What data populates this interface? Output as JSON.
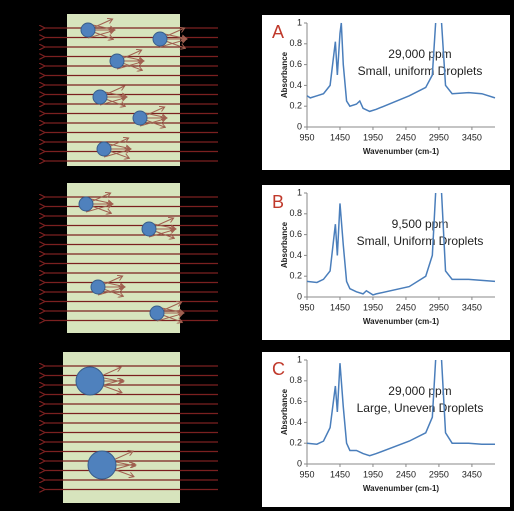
{
  "chart_data": [
    {
      "type": "line",
      "panel_label": "A",
      "annotations": [
        "29,000 ppm",
        "Small, uniform Droplets"
      ],
      "x_label": "Wavenumber (cm-1)",
      "y_label": "Absorbance",
      "color": "#4a7ebb",
      "x": [
        950,
        1000,
        1100,
        1200,
        1300,
        1380,
        1410,
        1450,
        1470,
        1500,
        1550,
        1600,
        1700,
        1750,
        1800,
        1900,
        2000,
        2500,
        2750,
        2850,
        2900,
        2950,
        2990,
        3050,
        3150,
        3400,
        3600,
        3800
      ],
      "values": [
        0.3,
        0.28,
        0.3,
        0.32,
        0.4,
        0.82,
        0.5,
        0.9,
        1,
        0.6,
        0.25,
        0.2,
        0.22,
        0.25,
        0.18,
        0.15,
        0.17,
        0.3,
        0.38,
        0.5,
        1,
        null,
        1,
        0.4,
        0.32,
        0.33,
        0.32,
        0.28
      ],
      "xlim": [
        950,
        3800
      ],
      "ylim": [
        0,
        1
      ],
      "xticks": [
        950,
        1450,
        1950,
        2450,
        2950,
        3450
      ],
      "yticks": [
        0,
        0.2,
        0.4,
        0.6,
        0.8,
        1
      ]
    },
    {
      "type": "line",
      "panel_label": "B",
      "annotations": [
        "9,500 ppm",
        "Small, Uniform Droplets"
      ],
      "x_label": "Wavenumber (cm-1)",
      "y_label": "Absorbance",
      "color": "#4a7ebb",
      "x": [
        950,
        1100,
        1200,
        1300,
        1380,
        1410,
        1450,
        1500,
        1550,
        1600,
        1700,
        1800,
        1850,
        1950,
        2000,
        2500,
        2750,
        2850,
        2900,
        2950,
        2990,
        3050,
        3150,
        3400,
        3600,
        3800
      ],
      "values": [
        0.15,
        0.14,
        0.17,
        0.25,
        0.7,
        0.4,
        0.9,
        0.5,
        0.15,
        0.08,
        0.05,
        0.03,
        0.06,
        0.02,
        0.03,
        0.1,
        0.2,
        0.4,
        1,
        null,
        1,
        0.25,
        0.17,
        0.17,
        0.16,
        0.15
      ],
      "xlim": [
        950,
        3800
      ],
      "ylim": [
        0,
        1
      ],
      "xticks": [
        950,
        1450,
        1950,
        2450,
        2950,
        3450
      ],
      "yticks": [
        0,
        0.2,
        0.4,
        0.6,
        0.8,
        1
      ]
    },
    {
      "type": "line",
      "panel_label": "C",
      "annotations": [
        "29,000 ppm",
        "Large, Uneven Droplets"
      ],
      "x_label": "Wavenumber (cm-1)",
      "y_label": "Absorbance",
      "color": "#4a7ebb",
      "x": [
        950,
        1100,
        1200,
        1300,
        1380,
        1410,
        1450,
        1500,
        1550,
        1600,
        1700,
        1800,
        1900,
        2000,
        2500,
        2750,
        2850,
        2900,
        2950,
        2990,
        3050,
        3150,
        3400,
        3600,
        3800
      ],
      "values": [
        0.2,
        0.19,
        0.22,
        0.35,
        0.75,
        0.5,
        0.97,
        0.55,
        0.2,
        0.13,
        0.13,
        0.1,
        0.08,
        0.1,
        0.22,
        0.3,
        0.45,
        1,
        null,
        1,
        0.3,
        0.2,
        0.2,
        0.19,
        0.19
      ],
      "xlim": [
        950,
        3800
      ],
      "ylim": [
        0,
        1
      ],
      "xticks": [
        950,
        1450,
        1950,
        2450,
        2950,
        3450
      ],
      "yticks": [
        0,
        0.2,
        0.4,
        0.6,
        0.8,
        1
      ]
    }
  ]
}
